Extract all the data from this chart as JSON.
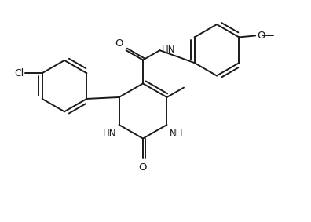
{
  "bg_color": "#ffffff",
  "line_color": "#1a1a1a",
  "line_width": 1.4,
  "figsize": [
    3.96,
    2.83
  ],
  "dpi": 100,
  "xlim": [
    0,
    9.9
  ],
  "ylim": [
    0,
    7.1
  ]
}
